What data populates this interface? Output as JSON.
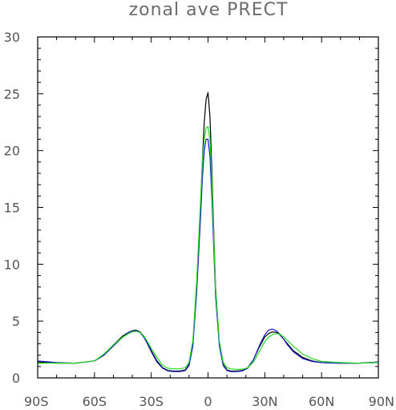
{
  "chart_data": {
    "type": "line",
    "title": "zonal ave PRECT",
    "xlabel": "",
    "ylabel": "",
    "xlim": [
      -90,
      90
    ],
    "ylim": [
      0,
      30
    ],
    "x_ticks": [
      -90,
      -60,
      -30,
      0,
      30,
      60,
      90
    ],
    "x_tick_labels": [
      "90S",
      "60S",
      "30S",
      "0",
      "30N",
      "60N",
      "90N"
    ],
    "y_ticks": [
      0,
      5,
      10,
      15,
      20,
      25,
      30
    ],
    "y_tick_labels": [
      "0",
      "5",
      "10",
      "15",
      "20",
      "25",
      "30"
    ],
    "grid": false,
    "legend": "none",
    "x": [
      -90,
      -80,
      -70,
      -60,
      -55,
      -50,
      -45,
      -42,
      -40,
      -38,
      -36,
      -34,
      -32,
      -30,
      -27,
      -24,
      -21,
      -18,
      -15,
      -12,
      -10,
      -8,
      -6,
      -4,
      -3,
      -2,
      -1,
      0,
      1,
      2,
      3,
      4,
      6,
      8,
      10,
      12,
      15,
      18,
      21,
      24,
      27,
      30,
      32,
      34,
      36,
      38,
      40,
      42,
      45,
      50,
      55,
      60,
      70,
      80,
      90
    ],
    "series": [
      {
        "color": "#000000",
        "values": [
          1.4,
          1.3,
          1.3,
          1.5,
          2.0,
          2.9,
          3.7,
          4.0,
          4.15,
          4.2,
          4.05,
          3.7,
          3.1,
          2.4,
          1.5,
          0.9,
          0.65,
          0.6,
          0.6,
          0.7,
          1.2,
          3.0,
          8.0,
          15.0,
          19.0,
          22.5,
          24.5,
          25.1,
          23.0,
          18.5,
          13.0,
          8.0,
          3.0,
          1.2,
          0.7,
          0.6,
          0.6,
          0.65,
          0.9,
          1.6,
          2.7,
          3.6,
          3.9,
          4.05,
          4.0,
          3.8,
          3.4,
          3.0,
          2.4,
          1.8,
          1.5,
          1.35,
          1.3,
          1.3,
          1.4
        ]
      },
      {
        "color": "#1a1acc",
        "values": [
          1.5,
          1.35,
          1.3,
          1.5,
          2.0,
          2.8,
          3.6,
          4.0,
          4.1,
          4.15,
          4.0,
          3.6,
          3.0,
          2.3,
          1.4,
          0.85,
          0.6,
          0.55,
          0.55,
          0.65,
          1.1,
          2.8,
          7.5,
          14.0,
          17.5,
          20.0,
          21.0,
          21.0,
          19.5,
          16.0,
          11.5,
          7.2,
          2.8,
          1.1,
          0.65,
          0.55,
          0.55,
          0.6,
          0.85,
          1.6,
          2.8,
          3.8,
          4.2,
          4.3,
          4.15,
          3.85,
          3.4,
          2.9,
          2.3,
          1.7,
          1.45,
          1.35,
          1.3,
          1.3,
          1.4
        ]
      },
      {
        "color": "#22dd22",
        "values": [
          1.3,
          1.3,
          1.3,
          1.5,
          2.1,
          2.9,
          3.6,
          3.9,
          4.05,
          4.1,
          4.0,
          3.7,
          3.2,
          2.6,
          1.8,
          1.1,
          0.85,
          0.8,
          0.8,
          0.9,
          1.4,
          3.3,
          8.5,
          15.5,
          19.0,
          21.0,
          22.0,
          22.1,
          21.0,
          17.5,
          12.5,
          7.8,
          3.2,
          1.4,
          0.9,
          0.8,
          0.75,
          0.75,
          0.9,
          1.4,
          2.3,
          3.2,
          3.6,
          3.8,
          3.9,
          3.85,
          3.6,
          3.3,
          2.8,
          2.1,
          1.7,
          1.45,
          1.35,
          1.3,
          1.35
        ]
      }
    ]
  }
}
